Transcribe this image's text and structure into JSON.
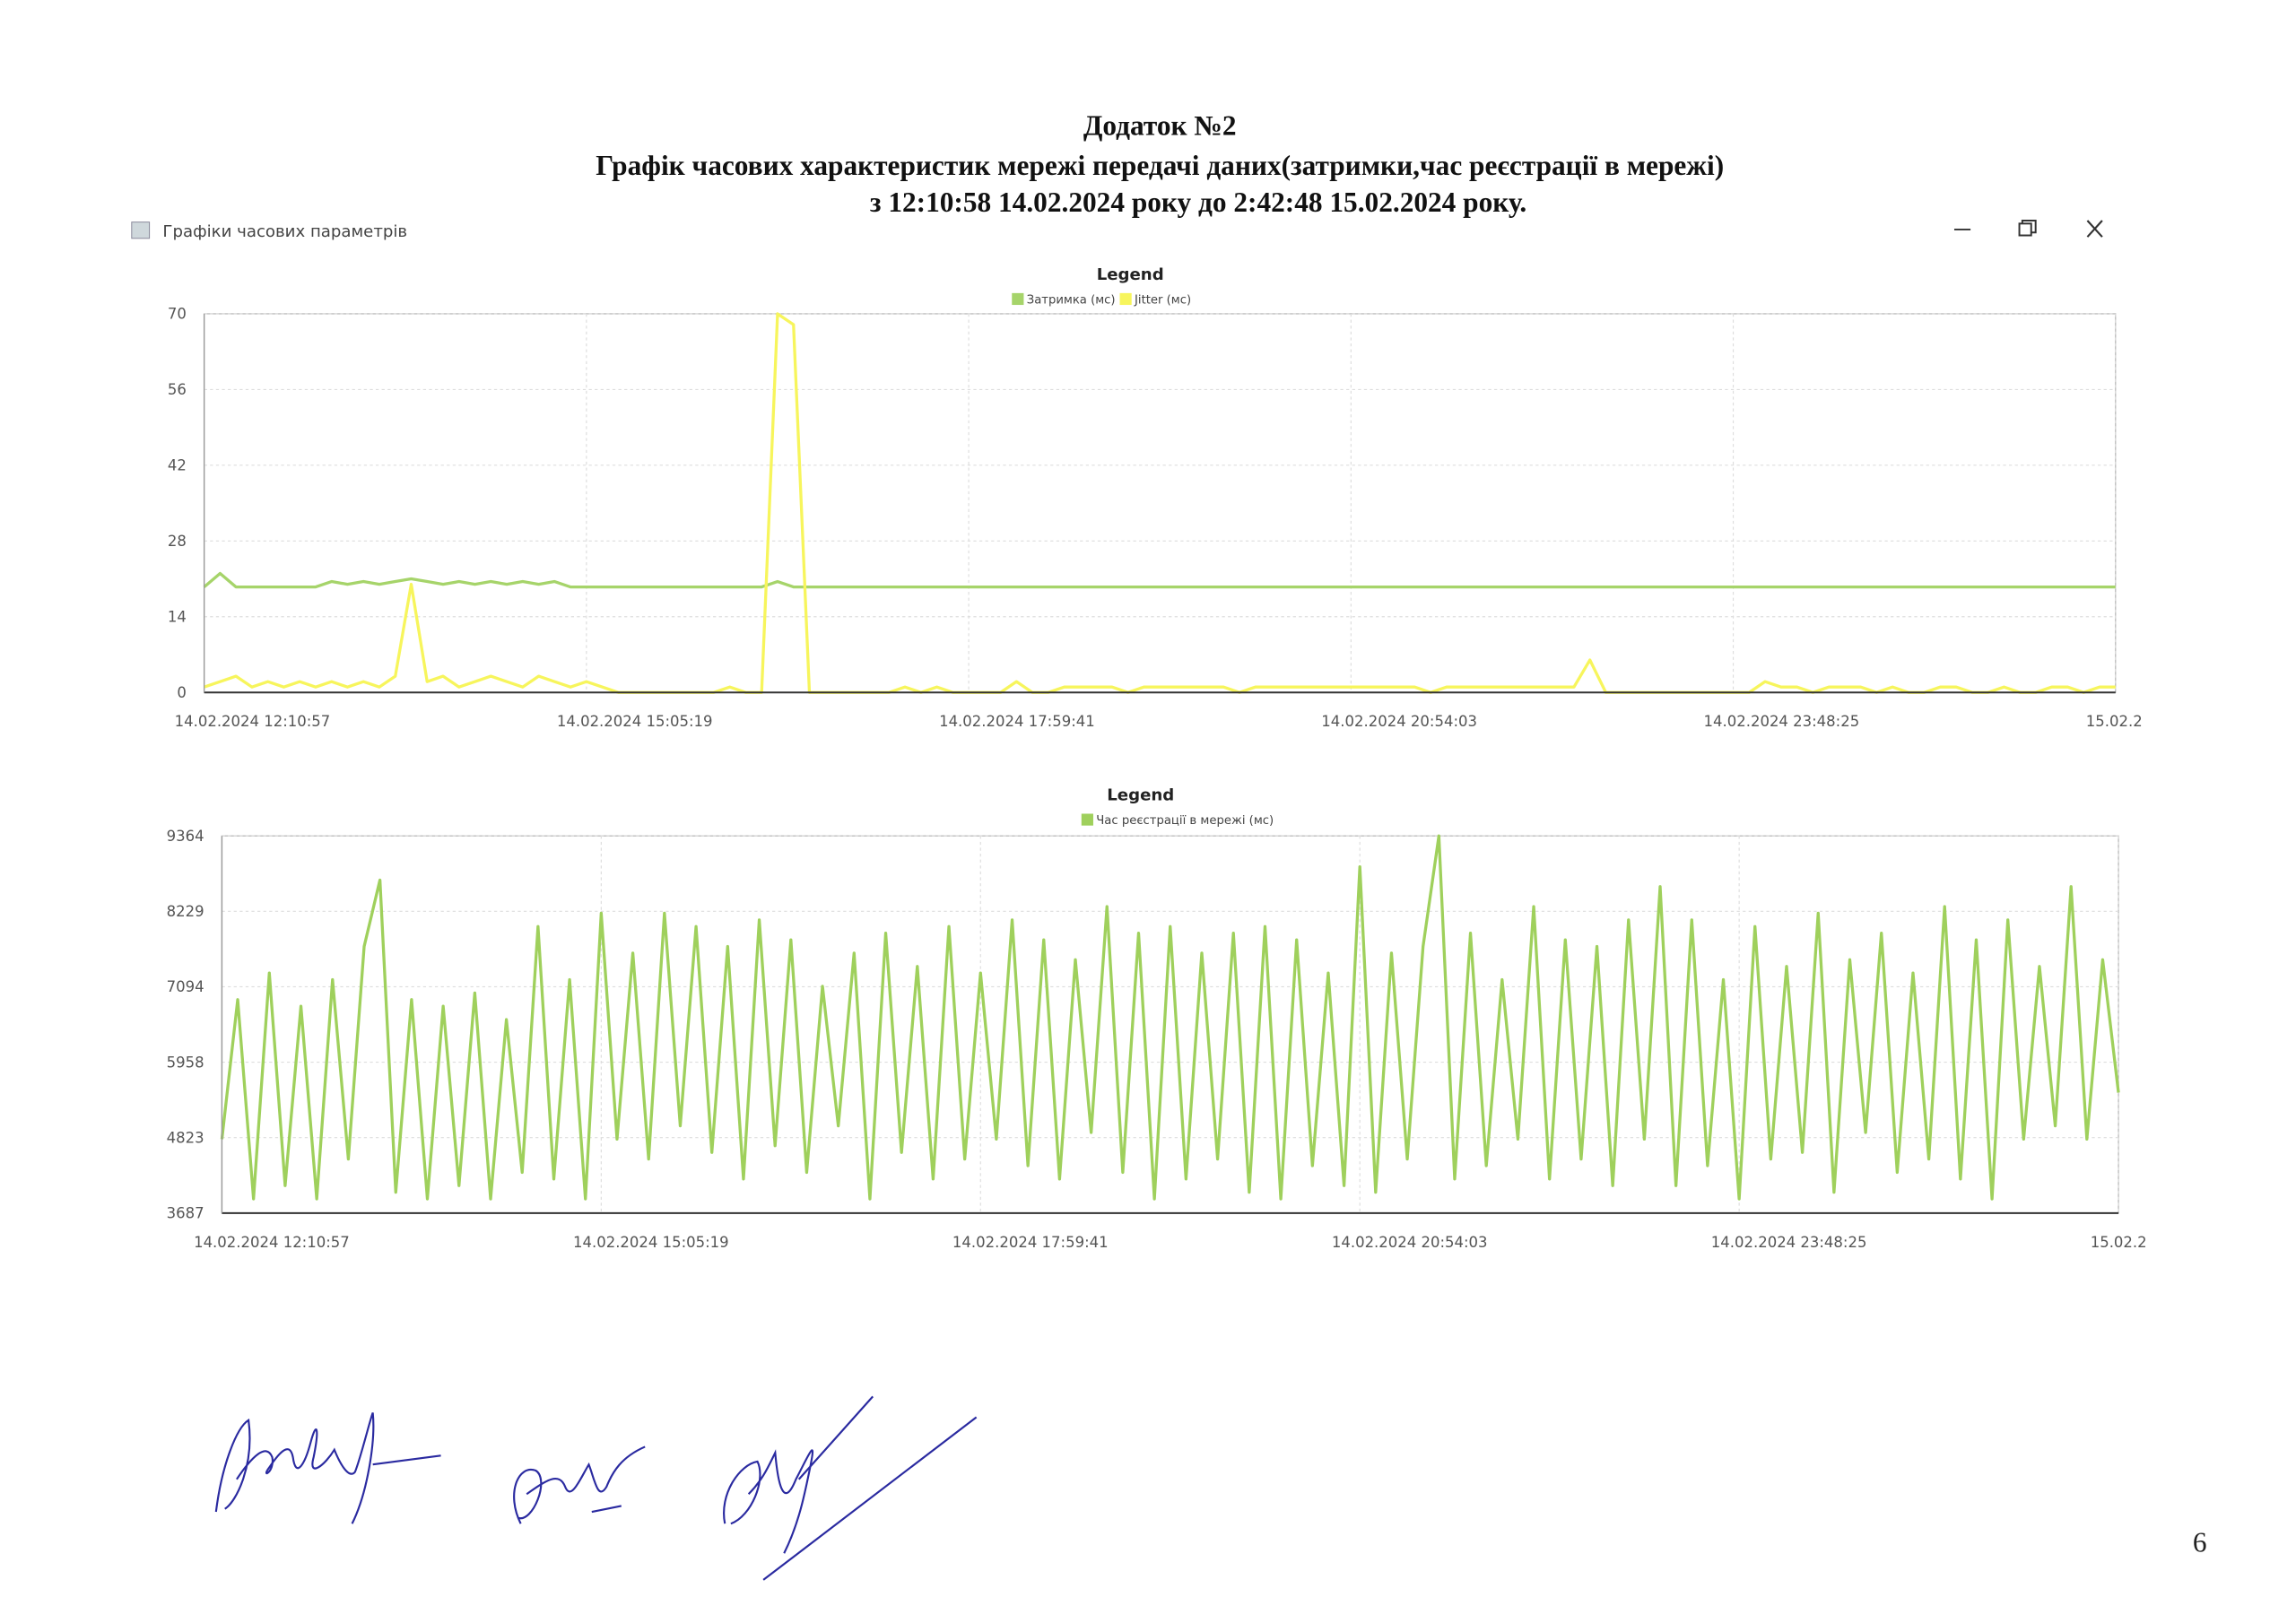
{
  "document": {
    "title_lines": [
      "Додаток №2",
      "Графік часових характеристик мережі передачі даних(затримки,час реєстрації в мережі)",
      "з 12:10:58  14.02.2024  року до 2:42:48   15.02.2024  року."
    ],
    "page_number": "6"
  },
  "window": {
    "title": "Графіки часових параметрів"
  },
  "chart_data": [
    {
      "type": "line",
      "legend_title": "Legend",
      "xlim": [
        0,
        120
      ],
      "xticks": [
        {
          "value": 0,
          "label": "14.02.2024 12:10:57"
        },
        {
          "value": 24,
          "label": "14.02.2024 15:05:19"
        },
        {
          "value": 48,
          "label": "14.02.2024 17:59:41"
        },
        {
          "value": 72,
          "label": "14.02.2024 20:54:03"
        },
        {
          "value": 96,
          "label": "14.02.2024 23:48:25"
        },
        {
          "value": 120,
          "label": "15.02.2"
        }
      ],
      "ylim": [
        0,
        70
      ],
      "yticks": [
        0,
        14,
        28,
        42,
        56,
        70
      ],
      "grid": true,
      "series": [
        {
          "name": "Затримка (мс)",
          "color": "#a6d46a",
          "values": [
            19.5,
            22,
            19.5,
            19.5,
            19.5,
            19.5,
            19.5,
            19.5,
            20.5,
            20,
            20.5,
            20,
            20.5,
            21,
            20.5,
            20,
            20.5,
            20,
            20.5,
            20,
            20.5,
            20,
            20.5,
            19.5,
            19.5,
            19.5,
            19.5,
            19.5,
            19.5,
            19.5,
            19.5,
            19.5,
            19.5,
            19.5,
            19.5,
            19.5,
            20.5,
            19.5,
            19.5,
            19.5,
            19.5,
            19.5,
            19.5,
            19.5,
            19.5,
            19.5,
            19.5,
            19.5,
            19.5,
            19.5,
            19.5,
            19.5,
            19.5,
            19.5,
            19.5,
            19.5,
            19.5,
            19.5,
            19.5,
            19.5,
            19.5,
            19.5,
            19.5,
            19.5,
            19.5,
            19.5,
            19.5,
            19.5,
            19.5,
            19.5,
            19.5,
            19.5,
            19.5,
            19.5,
            19.5,
            19.5,
            19.5,
            19.5,
            19.5,
            19.5,
            19.5,
            19.5,
            19.5,
            19.5,
            19.5,
            19.5,
            19.5,
            19.5,
            19.5,
            19.5,
            19.5,
            19.5,
            19.5,
            19.5,
            19.5,
            19.5,
            19.5,
            19.5,
            19.5,
            19.5,
            19.5,
            19.5,
            19.5,
            19.5,
            19.5,
            19.5,
            19.5,
            19.5,
            19.5,
            19.5,
            19.5,
            19.5,
            19.5,
            19.5,
            19.5,
            19.5,
            19.5,
            19.5,
            19.5,
            19.5,
            19.5
          ]
        },
        {
          "name": "Jitter (мс)",
          "color": "#f7f55c",
          "values": [
            1,
            2,
            3,
            1,
            2,
            1,
            2,
            1,
            2,
            1,
            2,
            1,
            3,
            20,
            2,
            3,
            1,
            2,
            3,
            2,
            1,
            3,
            2,
            1,
            2,
            1,
            0,
            0,
            0,
            0,
            0,
            0,
            0,
            1,
            0,
            0,
            70,
            68,
            0,
            0,
            0,
            0,
            0,
            0,
            1,
            0,
            1,
            0,
            0,
            0,
            0,
            2,
            0,
            0,
            1,
            1,
            1,
            1,
            0,
            1,
            1,
            1,
            1,
            1,
            1,
            0,
            1,
            1,
            1,
            1,
            1,
            1,
            1,
            1,
            1,
            1,
            1,
            0,
            1,
            1,
            1,
            1,
            1,
            1,
            1,
            1,
            1,
            6,
            0,
            0,
            0,
            0,
            0,
            0,
            0,
            0,
            0,
            0,
            2,
            1,
            1,
            0,
            1,
            1,
            1,
            0,
            1,
            0,
            0,
            1,
            1,
            0,
            0,
            1,
            0,
            0,
            1,
            1,
            0,
            1,
            1
          ]
        }
      ]
    },
    {
      "type": "line",
      "legend_title": "Legend",
      "xlim": [
        0,
        120
      ],
      "xticks": [
        {
          "value": 0,
          "label": "14.02.2024 12:10:57"
        },
        {
          "value": 24,
          "label": "14.02.2024 15:05:19"
        },
        {
          "value": 48,
          "label": "14.02.2024 17:59:41"
        },
        {
          "value": 72,
          "label": "14.02.2024 20:54:03"
        },
        {
          "value": 96,
          "label": "14.02.2024 23:48:25"
        },
        {
          "value": 120,
          "label": "15.02.2"
        }
      ],
      "ylim": [
        3687,
        9364
      ],
      "yticks": [
        3687,
        4823,
        5958,
        7094,
        8229,
        9364
      ],
      "grid": true,
      "series": [
        {
          "name": "Час реєстрації в мережі (мс)",
          "color": "#9fd05c",
          "values": [
            4800,
            6900,
            3900,
            7300,
            4100,
            6800,
            3900,
            7200,
            4500,
            7700,
            8700,
            4000,
            6900,
            3900,
            6800,
            4100,
            7000,
            3900,
            6600,
            4300,
            8000,
            4200,
            7200,
            3900,
            8200,
            4800,
            7600,
            4500,
            8200,
            5000,
            8000,
            4600,
            7700,
            4200,
            8100,
            4700,
            7800,
            4300,
            7100,
            5000,
            7600,
            3900,
            7900,
            4600,
            7400,
            4200,
            8000,
            4500,
            7300,
            4800,
            8100,
            4400,
            7800,
            4200,
            7500,
            4900,
            8300,
            4300,
            7900,
            3900,
            8000,
            4200,
            7600,
            4500,
            7900,
            4000,
            8000,
            3900,
            7800,
            4400,
            7300,
            4100,
            8900,
            4000,
            7600,
            4500,
            7700,
            9364,
            4200,
            7900,
            4400,
            7200,
            4800,
            8300,
            4200,
            7800,
            4500,
            7700,
            4100,
            8100,
            4800,
            8600,
            4100,
            8100,
            4400,
            7200,
            3900,
            8000,
            4500,
            7400,
            4600,
            8200,
            4000,
            7500,
            4900,
            7900,
            4300,
            7300,
            4500,
            8300,
            4200,
            7800,
            3900,
            8100,
            4800,
            7400,
            5000,
            8600,
            4800,
            7500,
            5500
          ]
        }
      ]
    }
  ]
}
